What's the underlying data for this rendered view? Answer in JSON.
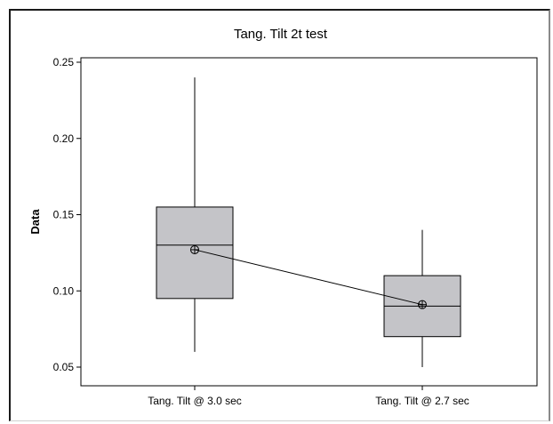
{
  "chart_data": {
    "type": "box",
    "title": "Tang. Tilt  2t test",
    "xlabel": "",
    "ylabel": "Data",
    "ylim": [
      0.04,
      0.255
    ],
    "yticks": [
      {
        "value": 0.05,
        "label": "0.05"
      },
      {
        "value": 0.1,
        "label": "0.10"
      },
      {
        "value": 0.15,
        "label": "0.15"
      },
      {
        "value": 0.2,
        "label": "0.20"
      },
      {
        "value": 0.25,
        "label": "0.25"
      }
    ],
    "categories": [
      "Tang. Tilt @ 3.0 sec",
      "Tang. Tilt @ 2.7 sec"
    ],
    "boxes": [
      {
        "min": 0.06,
        "q1": 0.095,
        "median": 0.13,
        "q3": 0.155,
        "max": 0.24,
        "mean": 0.127
      },
      {
        "min": 0.05,
        "q1": 0.07,
        "median": 0.09,
        "q3": 0.11,
        "max": 0.14,
        "mean": 0.091
      }
    ],
    "grid": false,
    "colors": {
      "box_fill": "#c4c4c8",
      "line": "#000000"
    }
  }
}
